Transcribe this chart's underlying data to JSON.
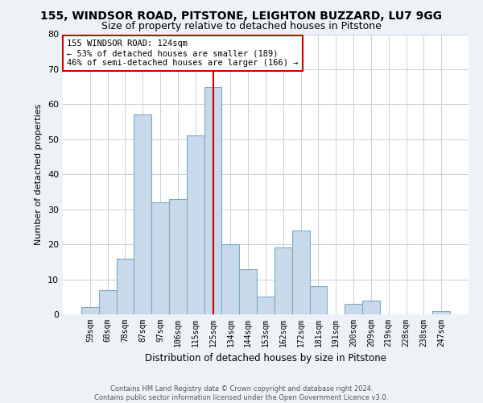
{
  "title_line1": "155, WINDSOR ROAD, PITSTONE, LEIGHTON BUZZARD, LU7 9GG",
  "title_line2": "Size of property relative to detached houses in Pitstone",
  "xlabel": "Distribution of detached houses by size in Pitstone",
  "ylabel": "Number of detached properties",
  "categories": [
    "59sqm",
    "68sqm",
    "78sqm",
    "87sqm",
    "97sqm",
    "106sqm",
    "115sqm",
    "125sqm",
    "134sqm",
    "144sqm",
    "153sqm",
    "162sqm",
    "172sqm",
    "181sqm",
    "191sqm",
    "200sqm",
    "209sqm",
    "219sqm",
    "228sqm",
    "238sqm",
    "247sqm"
  ],
  "values": [
    2,
    7,
    16,
    57,
    32,
    33,
    51,
    65,
    20,
    13,
    5,
    19,
    24,
    8,
    0,
    3,
    4,
    0,
    0,
    0,
    1
  ],
  "bar_color": "#c8d9ea",
  "bar_edge_color": "#7aaac8",
  "vline_x_idx": 7,
  "vline_color": "#cc0000",
  "annotation_text": "155 WINDSOR ROAD: 124sqm\n← 53% of detached houses are smaller (189)\n46% of semi-detached houses are larger (166) →",
  "annotation_box_color": "#ffffff",
  "annotation_box_edge": "#cc0000",
  "ylim": [
    0,
    80
  ],
  "yticks": [
    0,
    10,
    20,
    30,
    40,
    50,
    60,
    70,
    80
  ],
  "footer_line1": "Contains HM Land Registry data © Crown copyright and database right 2024.",
  "footer_line2": "Contains public sector information licensed under the Open Government Licence v3.0.",
  "background_color": "#eef2f7",
  "plot_background": "#ffffff",
  "grid_color": "#c8d0da",
  "title1_fontsize": 10,
  "title2_fontsize": 9
}
